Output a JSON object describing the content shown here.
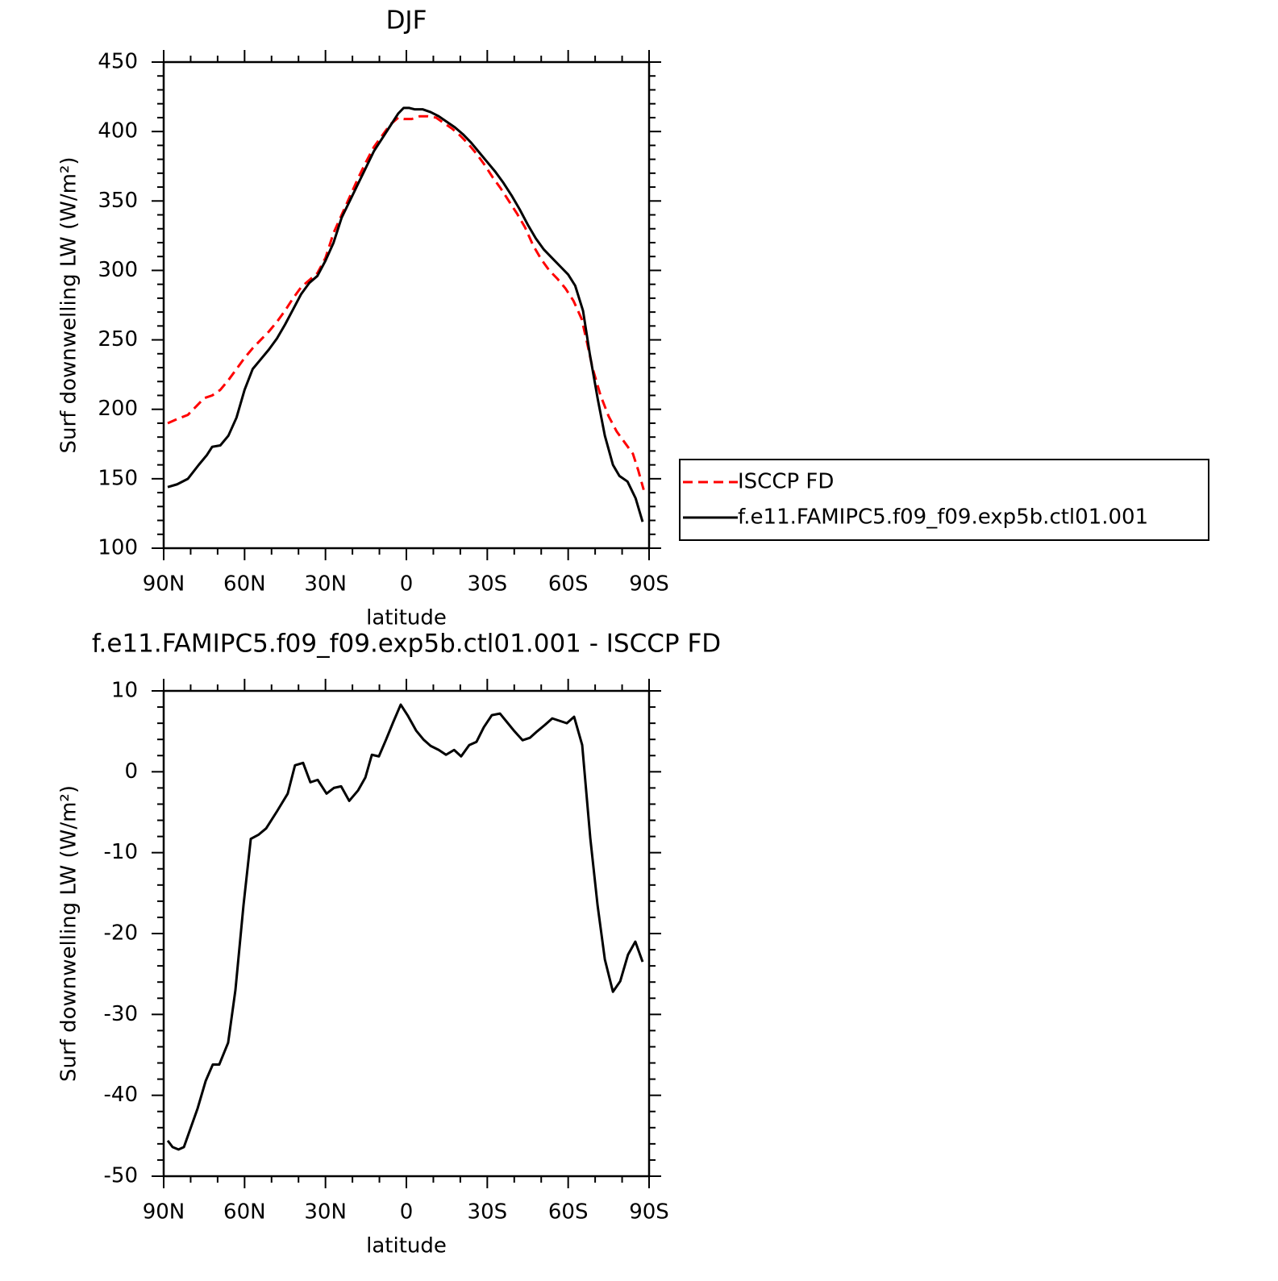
{
  "chart_data": [
    {
      "type": "line",
      "title": "DJF",
      "xlabel": "latitude",
      "ylabel": "Surf downwelling LW (W/m²)",
      "xlim": [
        90,
        -90
      ],
      "xticks": [
        {
          "value": 90,
          "label": "90N"
        },
        {
          "value": 60,
          "label": "60N"
        },
        {
          "value": 30,
          "label": "30N"
        },
        0,
        {
          "value": -30,
          "label": "30S"
        },
        {
          "value": -60,
          "label": "60S"
        },
        {
          "value": -90,
          "label": "90S"
        }
      ],
      "ylim": [
        100,
        450
      ],
      "yticks": [
        100,
        150,
        200,
        250,
        300,
        350,
        400,
        450
      ],
      "legend": "outside-right",
      "series": [
        {
          "name": "ISCCP FD",
          "color": "#ff0000",
          "line_style": "dashed",
          "x": [
            88.5,
            85,
            81,
            78,
            75,
            72,
            69,
            66,
            63,
            60,
            57,
            54,
            51,
            48,
            45,
            42,
            39,
            36,
            33,
            30,
            27,
            24,
            21,
            18,
            15,
            12,
            9,
            6,
            3,
            1,
            -2,
            -5,
            -8,
            -11,
            -14,
            -17,
            -20,
            -23,
            -26,
            -29,
            -32,
            -35,
            -38,
            -41,
            -44,
            -47,
            -50,
            -53,
            -56,
            -59,
            -62,
            -65,
            -67,
            -69,
            -72,
            -75,
            -78,
            -81,
            -84,
            -86,
            -88
          ],
          "values": [
            190,
            193,
            196,
            202,
            208,
            210,
            214,
            221,
            229,
            237,
            244,
            250,
            256,
            263,
            271,
            280,
            288,
            293,
            298,
            309,
            327,
            340,
            353,
            366,
            378,
            389,
            397,
            405,
            410,
            409,
            409,
            411,
            411,
            410,
            406,
            402,
            397,
            391,
            384,
            376,
            367,
            359,
            350,
            341,
            331,
            318,
            308,
            300,
            294,
            287,
            278,
            265,
            248,
            230,
            210,
            195,
            184,
            176,
            168,
            156,
            142
          ]
        },
        {
          "name": "f.e11.FAMIPC5.f09_f09.exp5b.ctl01.001",
          "color": "#000000",
          "line_style": "solid",
          "x": [
            88.5,
            85,
            81,
            77,
            74,
            72,
            69,
            66,
            63,
            60,
            57,
            54,
            51,
            48,
            45,
            42,
            39,
            36,
            33,
            30,
            27,
            24,
            21,
            18,
            15,
            12,
            9,
            6,
            3,
            1,
            -1,
            -3,
            -6,
            -9,
            -12,
            -15,
            -18,
            -21,
            -24,
            -27,
            -30,
            -33,
            -36,
            -39,
            -42,
            -45,
            -48,
            -51,
            -54,
            -57,
            -60,
            -62.6,
            -65.5,
            -68,
            -71,
            -73.6,
            -76.6,
            -79,
            -82,
            -85,
            -87.6
          ],
          "values": [
            144,
            146,
            150,
            160,
            167,
            173,
            174,
            181,
            194,
            214,
            229,
            236,
            243,
            251,
            261,
            272,
            283,
            291,
            296,
            307,
            320,
            338,
            350,
            362,
            374,
            386,
            395,
            404,
            413,
            417,
            417,
            416,
            416,
            414,
            411,
            407,
            403,
            398,
            392,
            385,
            378,
            371,
            363,
            354,
            344,
            333,
            323,
            315,
            309,
            303,
            297,
            289,
            271,
            240,
            207,
            181,
            160,
            152,
            148,
            136,
            119
          ]
        }
      ]
    },
    {
      "type": "line",
      "title": "f.e11.FAMIPC5.f09_f09.exp5b.ctl01.001 - ISCCP FD",
      "xlabel": "latitude",
      "ylabel": "Surf downwelling LW (W/m²)",
      "xlim": [
        90,
        -90
      ],
      "xticks": [
        {
          "value": 90,
          "label": "90N"
        },
        {
          "value": 60,
          "label": "60N"
        },
        {
          "value": 30,
          "label": "30N"
        },
        0,
        {
          "value": -30,
          "label": "30S"
        },
        {
          "value": -60,
          "label": "60S"
        },
        {
          "value": -90,
          "label": "90S"
        }
      ],
      "ylim": [
        -50,
        10
      ],
      "yticks": [
        -50,
        -40,
        -30,
        -20,
        -10,
        0,
        10
      ],
      "x": [
        88.5,
        86.7,
        84.5,
        82.5,
        77.4,
        74.4,
        71.8,
        69.4,
        66.1,
        63.4,
        60.4,
        57.7,
        54.9,
        52,
        48,
        44,
        41.3,
        38.3,
        35.6,
        32.9,
        29.6,
        26.9,
        24.2,
        21.2,
        17.9,
        15.2,
        12.8,
        10.2,
        7.5,
        4.8,
        2.1,
        -0.6,
        -3.6,
        -6.3,
        -9,
        -12,
        -14.7,
        -17.7,
        -20.3,
        -23.3,
        -26,
        -28.7,
        -31.7,
        -34.7,
        -37.4,
        -40.1,
        -43.1,
        -45.8,
        -48.5,
        -51.4,
        -54.1,
        -56.8,
        -59.5,
        -62.2,
        -65.2,
        -68.2,
        -70.9,
        -73.6,
        -76.6,
        -79.3,
        -82.2,
        -84.9,
        -87.6
      ],
      "series": [
        {
          "color": "#000000",
          "line_style": "solid",
          "values": [
            -45.6,
            -46.4,
            -46.7,
            -46.4,
            -41.6,
            -38.2,
            -36.2,
            -36.2,
            -33.5,
            -27,
            -16.5,
            -8.3,
            -7.8,
            -7,
            -4.9,
            -2.7,
            0.8,
            1.1,
            -1.3,
            -1,
            -2.7,
            -2,
            -1.8,
            -3.6,
            -2.3,
            -0.7,
            2.1,
            1.9,
            4,
            6.2,
            8.3,
            6.9,
            5.1,
            4,
            3.2,
            2.7,
            2.1,
            2.7,
            1.9,
            3.3,
            3.7,
            5.5,
            7,
            7.2,
            6.1,
            5,
            3.9,
            4.2,
            5,
            5.8,
            6.6,
            6.3,
            6,
            6.8,
            3.3,
            -8.2,
            -16.5,
            -23.2,
            -27.2,
            -25.9,
            -22.6,
            -21,
            -23.5
          ]
        }
      ]
    }
  ]
}
